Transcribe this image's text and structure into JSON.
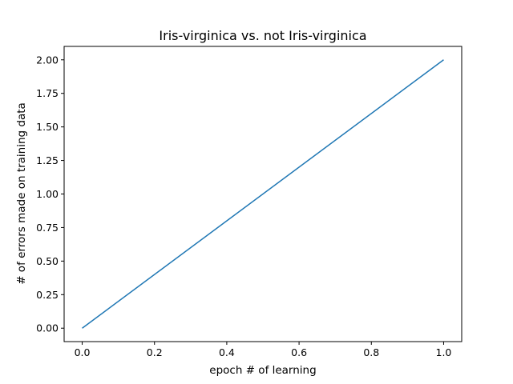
{
  "chart_data": {
    "type": "line",
    "title": "Iris-virginica vs. not Iris-virginica",
    "xlabel": "epoch # of learning",
    "ylabel": "# of errors made on training data",
    "xlim": [
      -0.05,
      1.05
    ],
    "ylim": [
      -0.1,
      2.1
    ],
    "x_ticks": [
      0.0,
      0.2,
      0.4,
      0.6,
      0.8,
      1.0
    ],
    "x_tick_labels": [
      "0.0",
      "0.2",
      "0.4",
      "0.6",
      "0.8",
      "1.0"
    ],
    "y_ticks": [
      0.0,
      0.25,
      0.5,
      0.75,
      1.0,
      1.25,
      1.5,
      1.75,
      2.0
    ],
    "y_tick_labels": [
      "0.00",
      "0.25",
      "0.50",
      "0.75",
      "1.00",
      "1.25",
      "1.50",
      "1.75",
      "2.00"
    ],
    "grid": false,
    "series": [
      {
        "x": [
          0,
          1
        ],
        "values": [
          0,
          2
        ],
        "color": "#1f77b4"
      }
    ]
  }
}
